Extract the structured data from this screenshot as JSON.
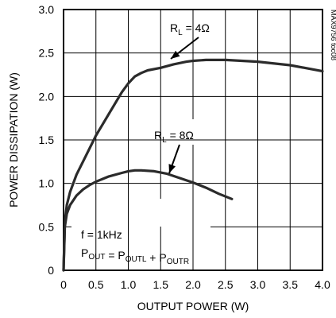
{
  "chart_data": {
    "type": "line",
    "xlabel": "OUTPUT POWER (W)",
    "ylabel": "POWER DISSIPATION (W)",
    "xlim": [
      0,
      4.0
    ],
    "ylim": [
      0,
      3.0
    ],
    "x_ticks": [
      "0",
      "0.5",
      "1.0",
      "1.5",
      "2.0",
      "2.5",
      "3.0",
      "3.5",
      "4.0"
    ],
    "y_ticks": [
      "0",
      "0.5",
      "1.0",
      "1.5",
      "2.0",
      "2.5",
      "3.0"
    ],
    "grid": true,
    "side_note": "MAX9756 toc08",
    "series": [
      {
        "name": "RL = 4Ω",
        "label_main": "R",
        "label_sub": "L",
        "label_rest": " = 4Ω",
        "x": [
          0.0,
          0.02,
          0.05,
          0.1,
          0.2,
          0.3,
          0.5,
          0.7,
          0.9,
          1.0,
          1.1,
          1.2,
          1.3,
          1.5,
          1.7,
          1.9,
          2.0,
          2.2,
          2.5,
          3.0,
          3.5,
          4.0
        ],
        "y": [
          0.0,
          0.55,
          0.75,
          0.9,
          1.1,
          1.25,
          1.55,
          1.8,
          2.05,
          2.15,
          2.23,
          2.27,
          2.3,
          2.33,
          2.37,
          2.4,
          2.41,
          2.42,
          2.42,
          2.4,
          2.36,
          2.29
        ]
      },
      {
        "name": "RL = 8Ω",
        "label_main": "R",
        "label_sub": "L",
        "label_rest": " = 8Ω",
        "x": [
          0.0,
          0.02,
          0.05,
          0.1,
          0.2,
          0.3,
          0.4,
          0.5,
          0.7,
          0.9,
          1.0,
          1.1,
          1.2,
          1.4,
          1.6,
          1.8,
          2.0,
          2.2,
          2.4,
          2.6
        ],
        "y": [
          0.0,
          0.5,
          0.65,
          0.75,
          0.86,
          0.93,
          0.98,
          1.02,
          1.08,
          1.12,
          1.14,
          1.15,
          1.15,
          1.14,
          1.11,
          1.06,
          1.01,
          0.95,
          0.88,
          0.82
        ]
      }
    ],
    "conditions": {
      "line1": "f = 1kHz",
      "line2_parts": [
        {
          "t": "P",
          "sub": false
        },
        {
          "t": "OUT",
          "sub": true
        },
        {
          "t": " = P",
          "sub": false
        },
        {
          "t": "OUTL",
          "sub": true
        },
        {
          "t": " + P",
          "sub": false
        },
        {
          "t": "OUTR",
          "sub": true
        }
      ]
    }
  }
}
